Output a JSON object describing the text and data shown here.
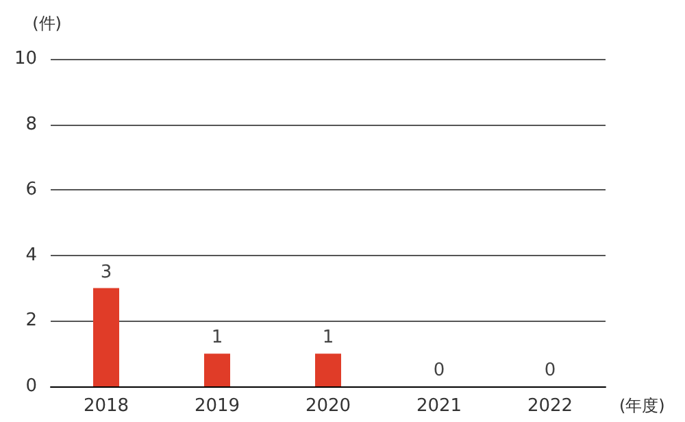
{
  "chart_data": {
    "type": "bar",
    "ylabel": "(件)",
    "xlabel": "(年度)",
    "categories": [
      "2018",
      "2019",
      "2020",
      "2021",
      "2022"
    ],
    "values": [
      3,
      1,
      1,
      0,
      0
    ],
    "color": "#e03c28",
    "ylim": [
      0,
      10
    ],
    "yticks": [
      0,
      2,
      4,
      6,
      8,
      10
    ],
    "grid": "y",
    "data_labels": true
  }
}
